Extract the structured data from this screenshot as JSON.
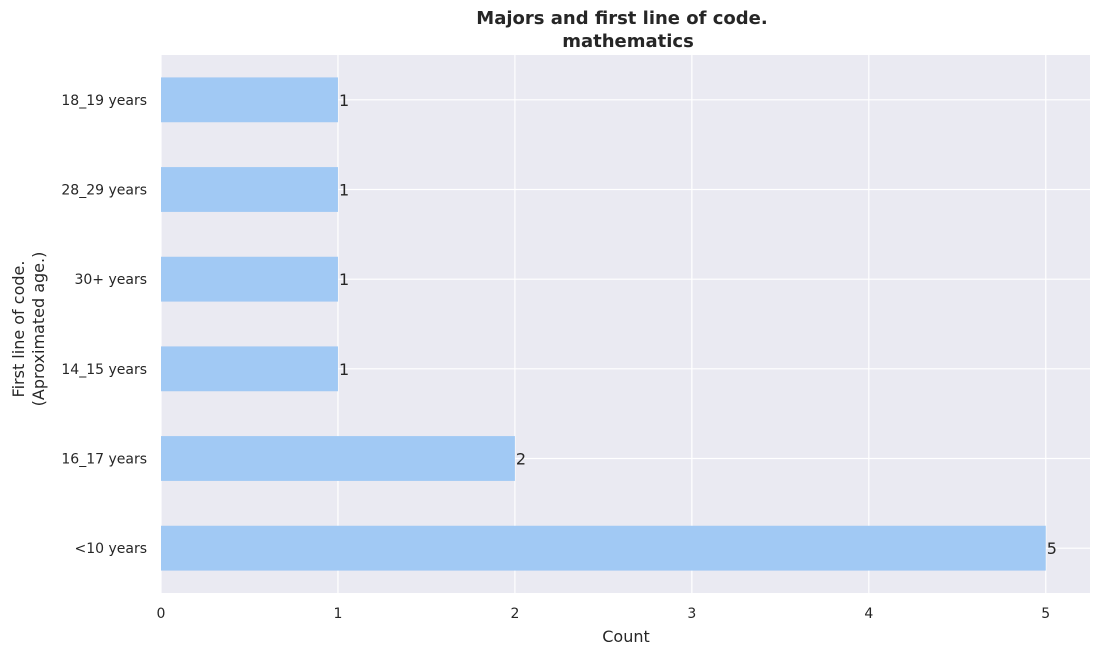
{
  "chart_data": {
    "type": "bar",
    "orientation": "horizontal",
    "title": "Majors and first line of code.",
    "subtitle": "mathematics",
    "xlabel": "Count",
    "ylabel_line1": "First line of code.",
    "ylabel_line2": "(Aproximated age.)",
    "categories": [
      "18_19 years",
      "28_29 years",
      "30+ years",
      "14_15 years",
      "16_17 years",
      "<10 years"
    ],
    "values": [
      1,
      1,
      1,
      1,
      2,
      5
    ],
    "xlim": [
      0,
      5.25
    ],
    "xticks": [
      "0",
      "1",
      "2",
      "3",
      "4",
      "5"
    ],
    "grid": true,
    "colors": {
      "bar": "#a1c9f4",
      "background": "#eaeaf2",
      "grid": "#ffffff"
    }
  }
}
